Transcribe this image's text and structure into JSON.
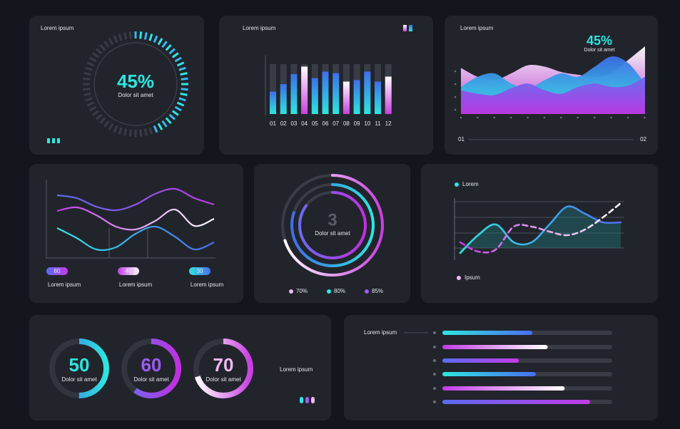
{
  "gauge": {
    "title": "Lorem ipsum",
    "value": 45,
    "value_label": "45%",
    "caption": "Dolor sit amet"
  },
  "bars": {
    "title": "Lorem ipsum",
    "categories": [
      "01",
      "02",
      "03",
      "04",
      "05",
      "06",
      "07",
      "08",
      "09",
      "10",
      "11",
      "12"
    ],
    "values": [
      45,
      60,
      80,
      95,
      72,
      85,
      82,
      65,
      68,
      85,
      65,
      75
    ],
    "colors": [
      "cyan",
      "cyan",
      "cyan",
      "pink",
      "cyan",
      "cyan",
      "cyan",
      "pink",
      "cyan",
      "cyan",
      "cyan",
      "pink"
    ]
  },
  "areas": {
    "title": "Lorem ipsum",
    "value": 45,
    "value_label": "45%",
    "caption": "Dolor sit amet",
    "start_label": "01",
    "end_label": "02",
    "series": [
      {
        "color": "pink",
        "values": [
          68,
          55,
          50,
          60,
          72,
          70,
          62,
          58,
          55,
          60,
          80,
          100
        ]
      },
      {
        "color": "cyan",
        "values": [
          40,
          55,
          60,
          45,
          38,
          50,
          60,
          55,
          70,
          85,
          75,
          45
        ]
      },
      {
        "color": "purple",
        "values": [
          35,
          30,
          28,
          38,
          45,
          35,
          30,
          40,
          45,
          40,
          42,
          55
        ]
      }
    ]
  },
  "lines": {
    "series": [
      {
        "color": "purple",
        "badge": 80,
        "label": "Lorem ipsum",
        "values": [
          88,
          84,
          72,
          67,
          75,
          90,
          97,
          84,
          75
        ]
      },
      {
        "color": "pink",
        "badge": 40,
        "label": "Lorem ipsum",
        "values": [
          66,
          71,
          60,
          44,
          40,
          52,
          68,
          45,
          55
        ]
      },
      {
        "color": "cyan",
        "badge": 30,
        "label": "Lorem ipsum",
        "values": [
          42,
          28,
          12,
          15,
          34,
          44,
          30,
          12,
          22
        ]
      }
    ]
  },
  "rings": {
    "value": 3,
    "caption": "Dolor sit amet",
    "series": [
      {
        "color": "pink",
        "value": 70,
        "value_label": "70%"
      },
      {
        "color": "cyan",
        "value": 80,
        "value_label": "80%"
      },
      {
        "color": "purple",
        "value": 85,
        "value_label": "85%"
      }
    ]
  },
  "trend": {
    "series": [
      {
        "name": "Lorem",
        "color": "cyan",
        "dashed": false,
        "values": [
          10,
          35,
          50,
          25,
          25,
          50,
          75,
          65,
          53,
          53
        ]
      },
      {
        "name": "Ipsum",
        "color": "pink",
        "dashed": true,
        "values": [
          25,
          12,
          15,
          47,
          47,
          40,
          35,
          43,
          60,
          80
        ]
      }
    ]
  },
  "donuts": {
    "label": "Lorem ipsum",
    "items": [
      {
        "value": 50,
        "caption": "Dolor sit amet",
        "color": "cyan"
      },
      {
        "value": 60,
        "caption": "Dolor sit amet",
        "color": "purple"
      },
      {
        "value": 70,
        "caption": "Dolor sit amet",
        "color": "pink"
      }
    ]
  },
  "progress": {
    "title": "Lorem ipsum",
    "values": [
      53,
      62,
      45,
      55,
      72,
      87
    ],
    "colors": [
      "cyan",
      "pink",
      "purple",
      "cyan",
      "pink",
      "purple"
    ]
  }
}
